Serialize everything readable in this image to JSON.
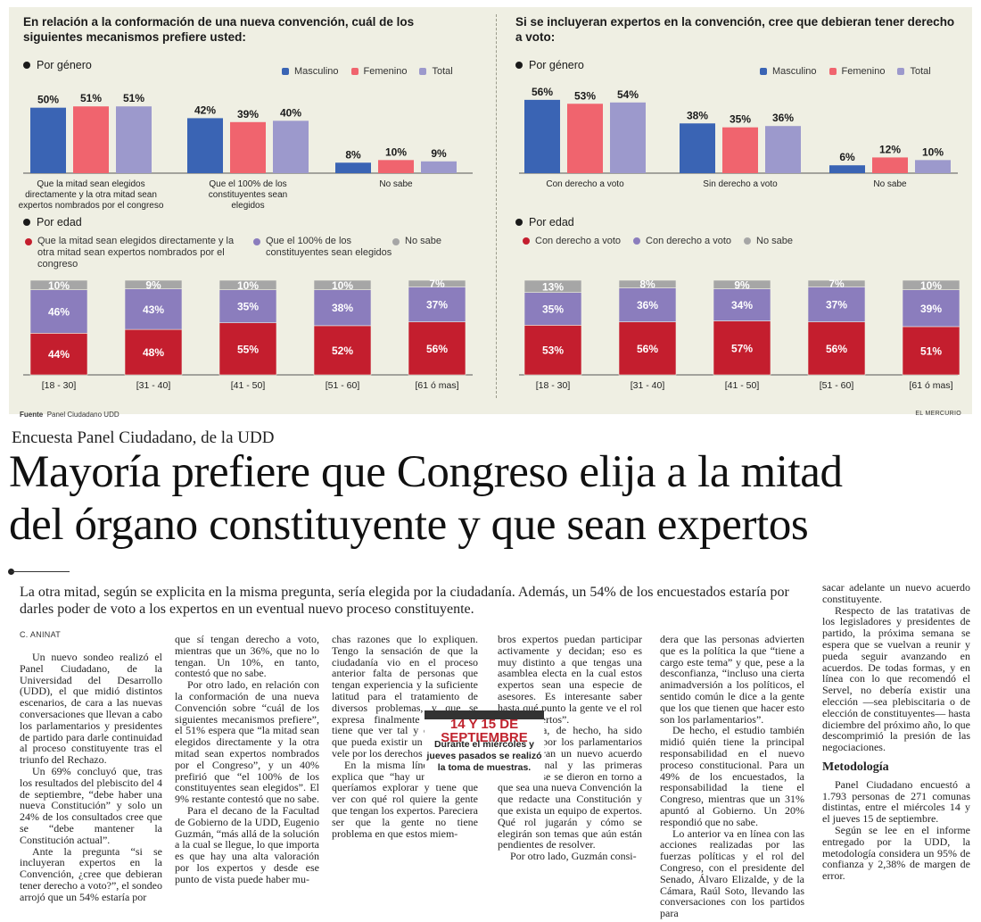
{
  "colors": {
    "masculino": "#3a64b4",
    "femenino": "#f0646e",
    "total": "#9c99cc",
    "mitad": "#c41e2e",
    "cien": "#8b7dbd",
    "nosabe": "#a6a6a6",
    "background": "#efefe3"
  },
  "left_panel": {
    "title": "En relación a la conformación de una nueva convención, cuál de los siguientes mecanismos prefiere usted:",
    "gender_label": "Por género",
    "age_label": "Por edad",
    "legend": [
      "Masculino",
      "Femenino",
      "Total"
    ],
    "age_legend": [
      "Que la mitad sean elegidos directamente y la otra mitad sean expertos nombrados por el congreso",
      "Que el 100% de los constituyentes sean elegidos",
      "No sabe"
    ]
  },
  "right_panel": {
    "title": "Si se incluyeran expertos en la convención, cree que debieran tener derecho a voto:",
    "gender_label": "Por género",
    "age_label": "Por edad",
    "legend": [
      "Masculino",
      "Femenino",
      "Total"
    ],
    "age_legend": [
      "Con derecho a voto",
      "Con derecho a voto",
      "No sabe"
    ]
  },
  "chart_data": [
    {
      "type": "bar",
      "categories": [
        "Que la mitad sean elegidos directamente y la otra mitad sean expertos nombrados por el congreso",
        "Que el 100% de los constituyentes sean elegidos",
        "No sabe"
      ],
      "series": [
        {
          "name": "Masculino",
          "values": [
            50,
            42,
            8
          ]
        },
        {
          "name": "Femenino",
          "values": [
            51,
            39,
            10
          ]
        },
        {
          "name": "Total",
          "values": [
            51,
            40,
            9
          ]
        }
      ],
      "labels": [
        [
          "50%",
          "51%",
          "51%"
        ],
        [
          "42%",
          "39%",
          "40%"
        ],
        [
          "8%",
          "10%",
          "9%"
        ]
      ],
      "ylim": [
        0,
        60
      ]
    },
    {
      "type": "bar",
      "stacked": true,
      "categories": [
        "[18 - 30]",
        "[31 - 40]",
        "[41 - 50]",
        "[51 - 60]",
        "[61 ó mas]"
      ],
      "series": [
        {
          "name": "Que la mitad sean elegidos directamente y la otra mitad sean expertos nombrados por el congreso",
          "values": [
            44,
            48,
            55,
            52,
            56
          ]
        },
        {
          "name": "Que el 100% de los constituyentes sean elegidos",
          "values": [
            46,
            43,
            35,
            38,
            37
          ]
        },
        {
          "name": "No sabe",
          "values": [
            10,
            9,
            10,
            10,
            7
          ]
        }
      ],
      "ylim": [
        0,
        100
      ]
    },
    {
      "type": "bar",
      "categories": [
        "Con derecho a voto",
        "Sin derecho a voto",
        "No sabe"
      ],
      "series": [
        {
          "name": "Masculino",
          "values": [
            56,
            38,
            6
          ]
        },
        {
          "name": "Femenino",
          "values": [
            53,
            35,
            12
          ]
        },
        {
          "name": "Total",
          "values": [
            54,
            36,
            10
          ]
        }
      ],
      "labels": [
        [
          "56%",
          "53%",
          "54%"
        ],
        [
          "38%",
          "35%",
          "36%"
        ],
        [
          "6%",
          "12%",
          "10%"
        ]
      ],
      "ylim": [
        0,
        60
      ]
    },
    {
      "type": "bar",
      "stacked": true,
      "categories": [
        "[18 - 30]",
        "[31 - 40]",
        "[41 - 50]",
        "[51 - 60]",
        "[61 ó mas]"
      ],
      "series": [
        {
          "name": "Con derecho a voto",
          "values": [
            53,
            56,
            57,
            56,
            51
          ]
        },
        {
          "name": "Con derecho a voto",
          "values": [
            35,
            36,
            34,
            37,
            39
          ]
        },
        {
          "name": "No sabe",
          "values": [
            13,
            8,
            9,
            7,
            10
          ]
        }
      ],
      "ylim": [
        0,
        100
      ]
    }
  ],
  "footer": {
    "source_label": "Fuente",
    "source": "Panel Ciudadano UDD",
    "brand": "EL MERCURIO"
  },
  "article": {
    "kicker": "Encuesta Panel Ciudadano, de la UDD",
    "headline_1": "Mayoría prefiere que Congreso elija a la mitad",
    "headline_2": "del órgano constituyente y que sean expertos",
    "deck": "La otra mitad, según se explicita en la misma pregunta, sería elegida por la ciudadanía. Además, un 54% de los encuestados estaría por darles poder de voto a los expertos en un eventual nuevo proceso constituyente.",
    "byline": "C. ANINAT",
    "callout_title": "14 Y 15 DE SEPTIEMBRE",
    "callout_text": "Durante el miércoles y jueves pasados se realizó la toma de muestras.",
    "col1": [
      "Un nuevo sondeo realizó el Panel Ciudadano, de la Universidad del Desarrollo (UDD), el que midió distintos escenarios, de cara a las nuevas conversaciones que llevan a cabo los parlamentarios y presidentes de partido para darle continuidad al proceso constituyente tras el triunfo del Rechazo.",
      "Un 69% concluyó que, tras los resultados del plebiscito del 4 de septiembre, “debe haber una nueva Constitución” y solo un 24% de los consultados cree que se “debe mantener la Constitución actual”.",
      "Ante la pregunta “si se incluyeran expertos en la Convención, ¿cree que debieran tener derecho a voto?”, el sondeo arrojó que un 54% estaría por"
    ],
    "col2": [
      "que sí tengan derecho a voto, mientras que un 36%, que no lo tengan. Un 10%, en tanto, contestó que no sabe.",
      "Por otro lado, en relación con la conformación de una nueva Convención sobre “cuál de los siguientes mecanismos prefiere”, el 51% espera que “la mitad sean elegidos directamente y la otra mitad sean expertos nombrados por el Congreso”, y un 40% prefirió que “el 100% de los constituyentes sean elegidos”. El 9% restante contestó que no sabe.",
      "Para el decano de la Facultad de Gobierno de la UDD, Eugenio Guzmán, “más allá de la solución a la cual se llegue, lo que importa es que hay una alta valoración por los expertos y desde ese punto de vista puede haber mu-"
    ],
    "col3a": "chas razones que lo expliquen. Tengo la sensación de que la ciudadanía vio en el proceso anterior falta de personas que tengan experiencia y la suficiente latitud para el tratamiento de diversos problemas, y que se expresa finalmente con quién tiene que ver tal y cuál tema y que pueda existir un experto que vele por los derechos de todos”.",
    "col3b": "En la misma línea, Guzmán explica que “hay un punto que queríamos explorar y tiene que ver con qué rol quiere la gente que tengan los expertos. Pareciera ser que la gente no tiene problema en que estos miem-",
    "col4a": "bros expertos puedan participar activamente y decidan; eso es muy distinto a que tengas una asamblea electa en la cual estos expertos sean una especie de asesores. Es interesante saber hasta qué punto la gente ve el rol de los expertos”.",
    "col4b": "El tema, de hecho, ha sido abordado por los parlamentarios que exploran un nuevo acuerdo constitucional y las primeras luces de ese se dieron en torno a que sea una nueva Convención la que redacte una Constitución y que exista un equipo de expertos. Qué rol jugarán y cómo se elegirán son temas que aún están pendientes de resolver.",
    "col4c": "Por otro lado, Guzmán consi-",
    "col5": [
      "dera que las personas advierten que es la política la que “tiene a cargo este tema” y que, pese a la desconfianza, “incluso una cierta animadversión a los políticos, el sentido común le dice a la gente que los que tienen que hacer esto son los parlamentarios”.",
      "De hecho, el estudio también midió quién tiene la principal responsabilidad en el nuevo proceso constitucional. Para un 49% de los encuestados, la responsabilidad la tiene el Congreso, mientras que un 31% apuntó al Gobierno. Un 20% respondió que no sabe.",
      "Lo anterior va en línea con las acciones realizadas por las fuerzas políticas y el rol del Congreso, con el presidente del Senado, Álvaro Elizalde, y de la Cámara, Raúl Soto, llevando las conversaciones con los partidos para"
    ],
    "col6": [
      "sacar adelante un nuevo acuerdo constituyente.",
      "Respecto de las tratativas de los legisladores y presidentes de partido, la próxima semana se espera que se vuelvan a reunir y pueda seguir avanzando en acuerdos. De todas formas, y en línea con lo que recomendó el Servel, no debería existir una elección —sea plebiscitaria o de elección de constituyentes— hasta diciembre del próximo año, lo que descomprimió la presión de las negociaciones."
    ],
    "method_title": "Metodología",
    "method": [
      "Panel Ciudadano encuestó a 1.793 personas de 271 comunas distintas, entre el miércoles 14 y el jueves 15 de septiembre.",
      "Según se lee en el informe entregado por la UDD, la metodología considera un 95% de confianza y 2,38% de margen de error."
    ]
  }
}
